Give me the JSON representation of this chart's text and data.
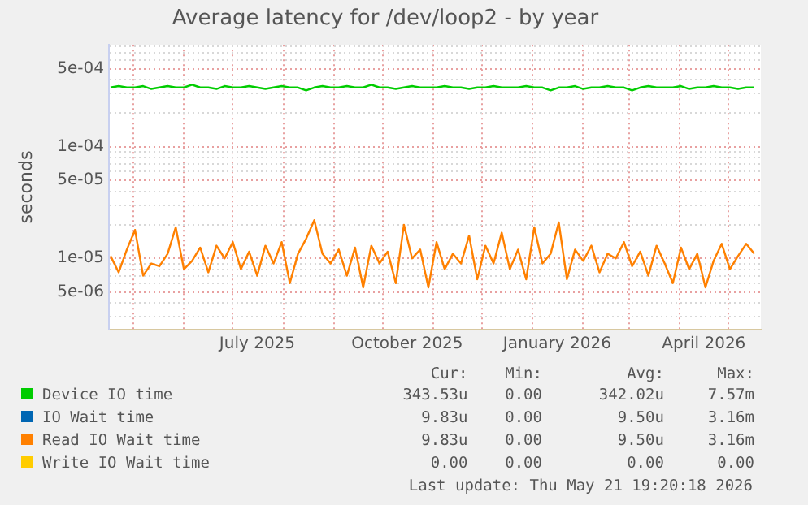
{
  "chart_data": {
    "type": "line",
    "title": "Average latency for /dev/loop2 - by year",
    "ylabel": "seconds",
    "log": true,
    "grid": true,
    "legend": "bottom",
    "marker": "none",
    "line_style": "solid",
    "x": [
      "2025-04-17",
      "2025-04-22",
      "2025-04-27",
      "2025-05-02",
      "2025-05-07",
      "2025-05-12",
      "2025-05-17",
      "2025-05-22",
      "2025-05-27",
      "2025-06-01",
      "2025-06-06",
      "2025-06-11",
      "2025-06-16",
      "2025-06-21",
      "2025-06-26",
      "2025-07-01",
      "2025-07-06",
      "2025-07-11",
      "2025-07-16",
      "2025-07-21",
      "2025-07-26",
      "2025-07-31",
      "2025-08-05",
      "2025-08-10",
      "2025-08-15",
      "2025-08-20",
      "2025-08-25",
      "2025-08-30",
      "2025-09-04",
      "2025-09-09",
      "2025-09-14",
      "2025-09-19",
      "2025-09-24",
      "2025-09-29",
      "2025-10-04",
      "2025-10-09",
      "2025-10-14",
      "2025-10-19",
      "2025-10-24",
      "2025-10-29",
      "2025-11-03",
      "2025-11-08",
      "2025-11-13",
      "2025-11-18",
      "2025-11-23",
      "2025-11-28",
      "2025-12-03",
      "2025-12-08",
      "2025-12-13",
      "2025-12-18",
      "2025-12-23",
      "2025-12-28",
      "2026-01-02",
      "2026-01-07",
      "2026-01-12",
      "2026-01-17",
      "2026-01-22",
      "2026-01-27",
      "2026-02-01",
      "2026-02-06",
      "2026-02-11",
      "2026-02-16",
      "2026-02-21",
      "2026-02-26",
      "2026-03-03",
      "2026-03-08",
      "2026-03-13",
      "2026-03-18",
      "2026-03-23",
      "2026-03-28",
      "2026-04-02",
      "2026-04-07",
      "2026-04-12",
      "2026-04-17",
      "2026-04-22",
      "2026-04-27",
      "2026-05-02",
      "2026-05-07",
      "2026-05-12",
      "2026-05-17"
    ],
    "xlim": [
      "2025-04-16",
      "2026-05-21"
    ],
    "xticks": [
      {
        "value": "2025-05-01",
        "label": null
      },
      {
        "value": "2025-06-01",
        "label": null
      },
      {
        "value": "2025-07-01",
        "label": null
      },
      {
        "value": "2025-07-16",
        "label": "July 2025"
      },
      {
        "value": "2025-08-01",
        "label": null
      },
      {
        "value": "2025-09-01",
        "label": null
      },
      {
        "value": "2025-10-01",
        "label": null
      },
      {
        "value": "2025-10-16",
        "label": "October 2025"
      },
      {
        "value": "2025-11-01",
        "label": null
      },
      {
        "value": "2025-12-01",
        "label": null
      },
      {
        "value": "2026-01-01",
        "label": null
      },
      {
        "value": "2026-01-16",
        "label": "January 2026"
      },
      {
        "value": "2026-02-01",
        "label": null
      },
      {
        "value": "2026-03-01",
        "label": null
      },
      {
        "value": "2026-04-01",
        "label": null
      },
      {
        "value": "2026-04-16",
        "label": "April 2026"
      },
      {
        "value": "2026-05-01",
        "label": null
      }
    ],
    "ylim": [
      2.3e-06,
      0.00082
    ],
    "yticks": [
      {
        "value": 3e-06,
        "label": null
      },
      {
        "value": 4e-06,
        "label": null
      },
      {
        "value": 5e-06,
        "label": "5e-06"
      },
      {
        "value": 6e-06,
        "label": null
      },
      {
        "value": 7e-06,
        "label": null
      },
      {
        "value": 8e-06,
        "label": null
      },
      {
        "value": 9e-06,
        "label": null
      },
      {
        "value": 1e-05,
        "label": "1e-05"
      },
      {
        "value": 2e-05,
        "label": null
      },
      {
        "value": 3e-05,
        "label": null
      },
      {
        "value": 4e-05,
        "label": null
      },
      {
        "value": 5e-05,
        "label": "5e-05"
      },
      {
        "value": 6e-05,
        "label": null
      },
      {
        "value": 7e-05,
        "label": null
      },
      {
        "value": 8e-05,
        "label": null
      },
      {
        "value": 9e-05,
        "label": null
      },
      {
        "value": 0.0001,
        "label": "1e-04"
      },
      {
        "value": 0.0002,
        "label": null
      },
      {
        "value": 0.0003,
        "label": null
      },
      {
        "value": 0.0004,
        "label": null
      },
      {
        "value": 0.0005,
        "label": "5e-04"
      },
      {
        "value": 0.0006,
        "label": null
      },
      {
        "value": 0.0007,
        "label": null
      },
      {
        "value": 0.0008,
        "label": null
      }
    ],
    "series": [
      {
        "name": "Device IO time",
        "color": "#00cc00",
        "values": [
          0.00034,
          0.00035,
          0.00034,
          0.00034,
          0.00035,
          0.00033,
          0.00034,
          0.00035,
          0.00034,
          0.00034,
          0.00036,
          0.00034,
          0.00034,
          0.00033,
          0.00035,
          0.00034,
          0.00034,
          0.00035,
          0.00034,
          0.00033,
          0.00034,
          0.00035,
          0.00034,
          0.00034,
          0.00032,
          0.00034,
          0.00035,
          0.00034,
          0.00034,
          0.00035,
          0.00034,
          0.00034,
          0.00036,
          0.00034,
          0.00034,
          0.00033,
          0.00034,
          0.00035,
          0.00034,
          0.00034,
          0.00034,
          0.00035,
          0.00034,
          0.00034,
          0.00033,
          0.00034,
          0.00034,
          0.00035,
          0.00034,
          0.00034,
          0.00034,
          0.00035,
          0.00034,
          0.00034,
          0.00032,
          0.00034,
          0.00034,
          0.00035,
          0.00033,
          0.00034,
          0.00034,
          0.00035,
          0.00034,
          0.00034,
          0.00032,
          0.00034,
          0.00035,
          0.00034,
          0.00034,
          0.00034,
          0.00035,
          0.00033,
          0.00034,
          0.00034,
          0.00035,
          0.00034,
          0.00034,
          0.00033,
          0.00034,
          0.00034
        ]
      },
      {
        "name": "IO Wait time",
        "color": "#0066b3",
        "values": [
          null,
          null,
          null,
          null,
          null,
          null,
          null,
          null,
          null,
          null,
          null,
          null,
          null,
          null,
          null,
          null,
          null,
          null,
          null,
          null,
          null,
          null,
          null,
          null,
          null,
          null,
          null,
          null,
          null,
          null,
          null,
          null,
          null,
          null,
          null,
          null,
          null,
          null,
          null,
          null,
          null,
          null,
          null,
          null,
          null,
          null,
          null,
          null,
          null,
          null,
          null,
          null,
          null,
          null,
          null,
          null,
          null,
          null,
          null,
          null,
          null,
          null,
          null,
          null,
          null,
          null,
          null,
          null,
          null,
          null,
          null,
          null,
          null,
          null,
          null,
          null,
          null,
          null,
          null,
          null
        ]
      },
      {
        "name": "Read IO Wait time",
        "color": "#ff8000",
        "values": [
          1.05e-05,
          7.5e-06,
          1.2e-05,
          1.8e-05,
          7e-06,
          9e-06,
          8.5e-06,
          1.1e-05,
          1.9e-05,
          8e-06,
          9.5e-06,
          1.25e-05,
          7.5e-06,
          1.3e-05,
          1e-05,
          1.4e-05,
          8e-06,
          1.15e-05,
          7e-06,
          1.3e-05,
          9e-06,
          1.4e-05,
          6e-06,
          1.1e-05,
          1.5e-05,
          2.2e-05,
          1.1e-05,
          9e-06,
          1.2e-05,
          7e-06,
          1.25e-05,
          5.5e-06,
          1.3e-05,
          9e-06,
          1.15e-05,
          6e-06,
          2e-05,
          1e-05,
          1.2e-05,
          5.5e-06,
          1.4e-05,
          8e-06,
          1.1e-05,
          9e-06,
          1.6e-05,
          6.5e-06,
          1.3e-05,
          9e-06,
          1.7e-05,
          8e-06,
          1.2e-05,
          6.5e-06,
          1.9e-05,
          9e-06,
          1.1e-05,
          2.1e-05,
          6.5e-06,
          1.2e-05,
          9.5e-06,
          1.3e-05,
          7.5e-06,
          1.1e-05,
          1e-05,
          1.4e-05,
          8.5e-06,
          1.15e-05,
          7e-06,
          1.3e-05,
          9e-06,
          6e-06,
          1.25e-05,
          8e-06,
          1.1e-05,
          5.5e-06,
          9.5e-06,
          1.35e-05,
          8e-06,
          1.05e-05,
          1.35e-05,
          1.1e-05
        ]
      },
      {
        "name": "Write IO Wait time",
        "color": "#ffcc00",
        "values": [
          null,
          null,
          null,
          null,
          null,
          null,
          null,
          null,
          null,
          null,
          null,
          null,
          null,
          null,
          null,
          null,
          null,
          null,
          null,
          null,
          null,
          null,
          null,
          null,
          null,
          null,
          null,
          null,
          null,
          null,
          null,
          null,
          null,
          null,
          null,
          null,
          null,
          null,
          null,
          null,
          null,
          null,
          null,
          null,
          null,
          null,
          null,
          null,
          null,
          null,
          null,
          null,
          null,
          null,
          null,
          null,
          null,
          null,
          null,
          null,
          null,
          null,
          null,
          null,
          null,
          null,
          null,
          null,
          null,
          null,
          null,
          null,
          null,
          null,
          null,
          null,
          null,
          null,
          null,
          null
        ]
      }
    ],
    "annotations": [
      "Cur:",
      "Min:",
      "Avg:",
      "Max:",
      "343.53u",
      "0.00",
      "342.02u",
      "7.57m",
      "9.83u",
      "0.00",
      "9.50u",
      "3.16m",
      "9.83u",
      "0.00",
      "9.50u",
      "3.16m",
      "0.00",
      "0.00",
      "0.00",
      "0.00",
      "Last update: Thu May 21 19:20:18 2026"
    ]
  }
}
